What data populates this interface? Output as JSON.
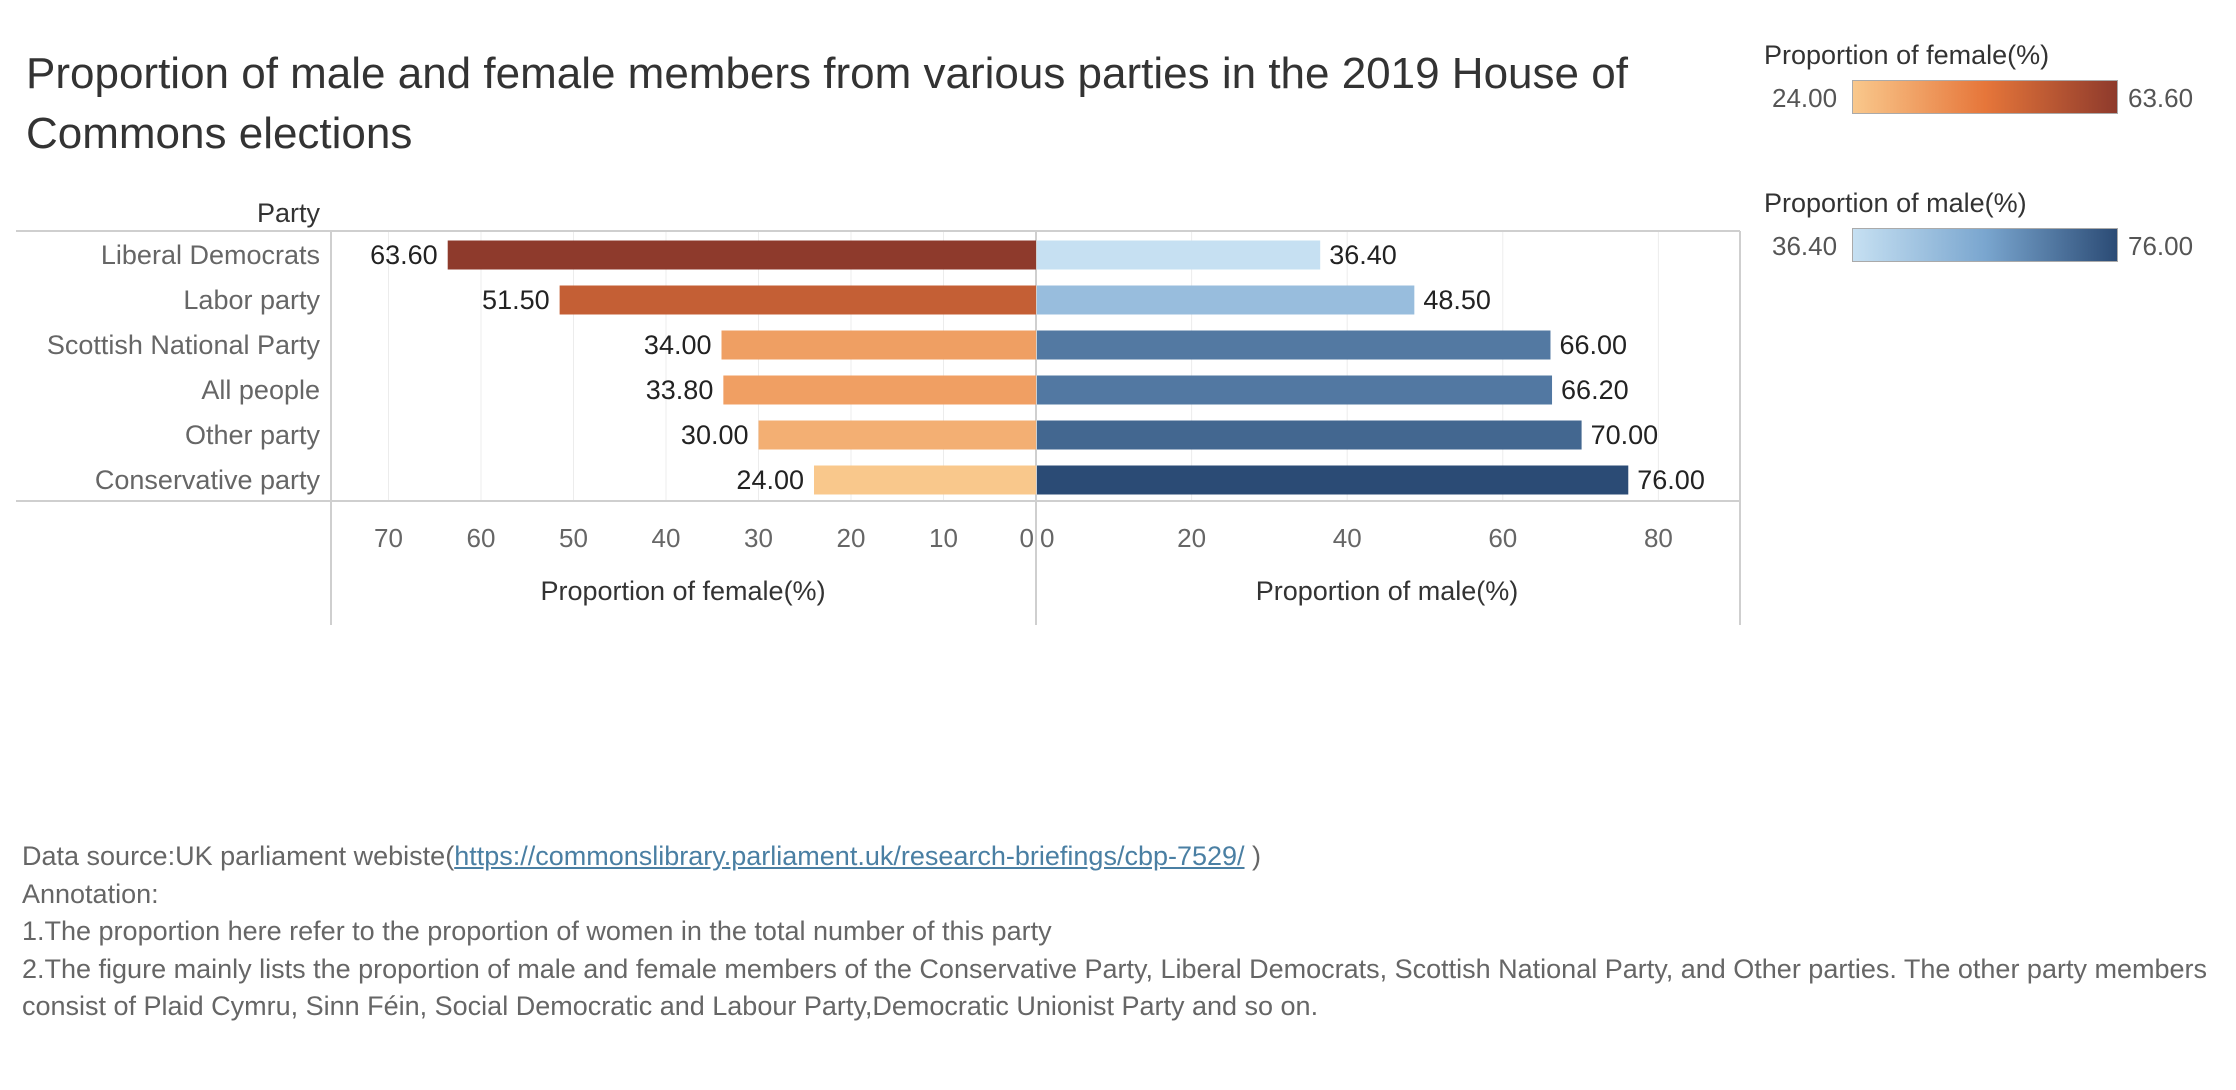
{
  "chart_data": {
    "type": "bar",
    "title": "Proportion of male and female members from various parties in the 2019 House of Commons elections",
    "category_header": "Party",
    "categories": [
      "Liberal Democrats",
      "Labor party",
      "Scottish National Party",
      "All people",
      "Other party",
      "Conservative party"
    ],
    "series": [
      {
        "name": "Proportion of female(%)",
        "values": [
          63.6,
          51.5,
          34.0,
          33.8,
          30.0,
          24.0
        ]
      },
      {
        "name": "Proportion of male(%)",
        "values": [
          36.4,
          48.5,
          66.0,
          66.2,
          70.0,
          76.0
        ]
      }
    ],
    "axes": {
      "female": {
        "label": "Proportion of female(%)",
        "xlim": [
          0,
          75
        ],
        "reversed": true,
        "ticks": [
          0,
          10,
          20,
          30,
          40,
          50,
          60,
          70
        ]
      },
      "male": {
        "label": "Proportion of male(%)",
        "xlim": [
          0,
          90
        ],
        "ticks": [
          0,
          20,
          40,
          60,
          80
        ]
      }
    },
    "grid": true,
    "legends": [
      {
        "title": "Proportion of female(%)",
        "min_label": "24.00",
        "max_label": "63.60",
        "color_low": "#f9c88c",
        "color_mid": "#e6763a",
        "color_high": "#8e3a2c"
      },
      {
        "title": "Proportion of male(%)",
        "min_label": "36.40",
        "max_label": "76.00",
        "color_low": "#c6e0f2",
        "color_mid": "#7aa6cf",
        "color_high": "#2b4b75"
      }
    ]
  },
  "footer": {
    "source_prefix": "Data source:UK parliament webiste(",
    "source_link": "https://commonslibrary.parliament.uk/research-briefings/cbp-7529/",
    "source_suffix": " )",
    "annotation_heading": "Annotation:",
    "note1": "1.The proportion here refer to the proportion of women in the total number of this party",
    "note2": "2.The figure mainly lists the proportion of male and female members of the Conservative Party, Liberal Democrats, Scottish National Party, and Other parties. The other party members consist of  Plaid Cymru, Sinn Féin,  Social Democratic and Labour Party,Democratic Unionist Party  and so on."
  }
}
